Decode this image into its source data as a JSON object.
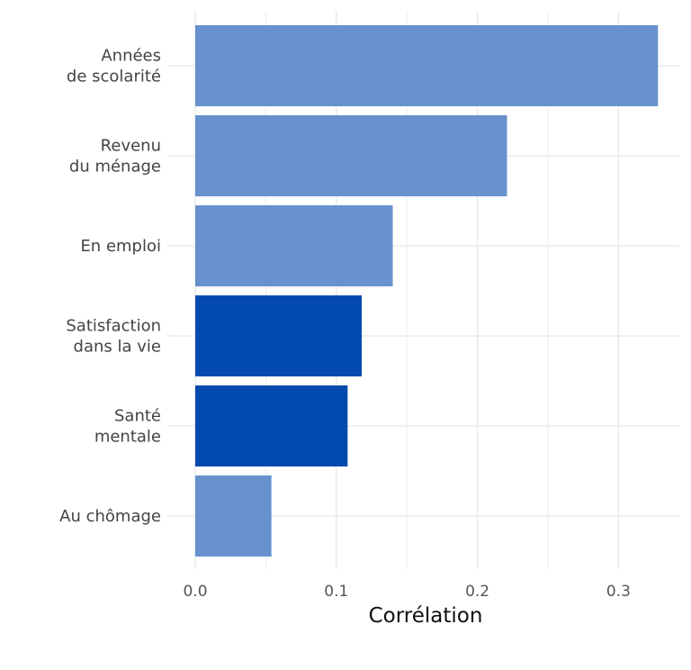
{
  "chart_data": {
    "type": "bar",
    "orientation": "horizontal",
    "xlabel": "Corrélation",
    "ylabel": "",
    "xlim": [
      0,
      0.345
    ],
    "xticks": [
      "0.0",
      "0.1",
      "0.2",
      "0.3"
    ],
    "grid": true,
    "colors": {
      "light": "#6792cd",
      "dark": "#034aae",
      "grid": "#ebebeb"
    },
    "categories": [
      {
        "lines": [
          "Années",
          "de scolarité"
        ],
        "value": 0.328,
        "highlight": false
      },
      {
        "lines": [
          "Revenu",
          "du ménage"
        ],
        "value": 0.221,
        "highlight": false
      },
      {
        "lines": [
          "En emploi"
        ],
        "value": 0.14,
        "highlight": false
      },
      {
        "lines": [
          "Satisfaction",
          "dans la vie"
        ],
        "value": 0.118,
        "highlight": true
      },
      {
        "lines": [
          "Santé",
          "mentale"
        ],
        "value": 0.108,
        "highlight": true
      },
      {
        "lines": [
          "Au chômage"
        ],
        "value": 0.054,
        "highlight": false
      }
    ]
  }
}
